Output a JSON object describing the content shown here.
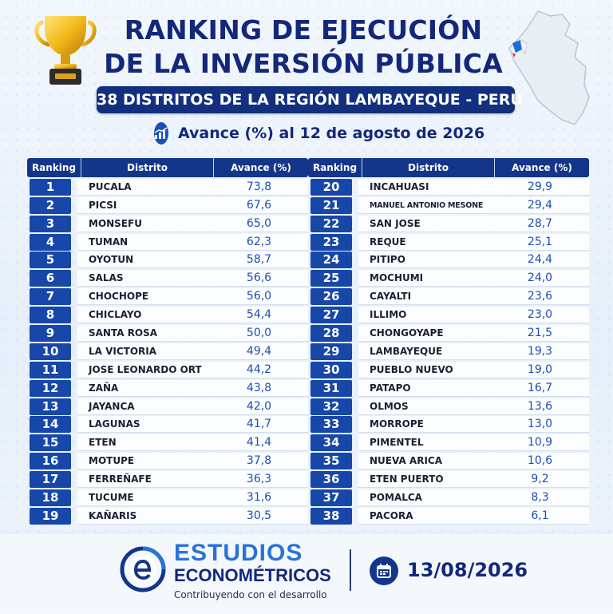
{
  "header": {
    "title_line1": "RANKING DE EJECUCIÓN",
    "title_line2": "DE LA INVERSIÓN PÚBLICA",
    "subtitle": "38 DISTRITOS DE LA REGIÓN LAMBAYEQUE - PERÚ",
    "avance_text": "Avance (%) al 12 de agosto de 2026"
  },
  "table": {
    "headers": [
      "Ranking",
      "Distrito",
      "Avance (%)"
    ],
    "left": [
      {
        "rank": "1",
        "district": "PUCALA",
        "value": "73,8"
      },
      {
        "rank": "2",
        "district": "PICSI",
        "value": "67,6"
      },
      {
        "rank": "3",
        "district": "MONSEFU",
        "value": "65,0"
      },
      {
        "rank": "4",
        "district": "TUMAN",
        "value": "62,3"
      },
      {
        "rank": "5",
        "district": "OYOTUN",
        "value": "58,7"
      },
      {
        "rank": "6",
        "district": "SALAS",
        "value": "56,6"
      },
      {
        "rank": "7",
        "district": "CHOCHOPE",
        "value": "56,0"
      },
      {
        "rank": "8",
        "district": "CHICLAYO",
        "value": "54,4"
      },
      {
        "rank": "9",
        "district": "SANTA ROSA",
        "value": "50,0"
      },
      {
        "rank": "10",
        "district": "LA VICTORIA",
        "value": "49,4"
      },
      {
        "rank": "11",
        "district": "JOSE LEONARDO ORTIZ",
        "value": "44,2"
      },
      {
        "rank": "12",
        "district": "ZAÑA",
        "value": "43,8"
      },
      {
        "rank": "13",
        "district": "JAYANCA",
        "value": "42,0"
      },
      {
        "rank": "14",
        "district": "LAGUNAS",
        "value": "41,7"
      },
      {
        "rank": "15",
        "district": "ETEN",
        "value": "41,4"
      },
      {
        "rank": "16",
        "district": "MOTUPE",
        "value": "37,8"
      },
      {
        "rank": "17",
        "district": "FERREÑAFE",
        "value": "36,3"
      },
      {
        "rank": "18",
        "district": "TUCUME",
        "value": "31,6"
      },
      {
        "rank": "19",
        "district": "KAÑARIS",
        "value": "30,5"
      }
    ],
    "right": [
      {
        "rank": "20",
        "district": "INCAHUASI",
        "value": "29,9"
      },
      {
        "rank": "21",
        "district": "MANUEL ANTONIO MESONES MURO",
        "value": "29,4"
      },
      {
        "rank": "22",
        "district": "SAN JOSE",
        "value": "28,7"
      },
      {
        "rank": "23",
        "district": "REQUE",
        "value": "25,1"
      },
      {
        "rank": "24",
        "district": "PITIPO",
        "value": "24,4"
      },
      {
        "rank": "25",
        "district": "MOCHUMI",
        "value": "24,0"
      },
      {
        "rank": "26",
        "district": "CAYALTI",
        "value": "23,6"
      },
      {
        "rank": "27",
        "district": "ILLIMO",
        "value": "23,0"
      },
      {
        "rank": "28",
        "district": "CHONGOYAPE",
        "value": "21,5"
      },
      {
        "rank": "29",
        "district": "LAMBAYEQUE",
        "value": "19,3"
      },
      {
        "rank": "30",
        "district": "PUEBLO NUEVO",
        "value": "19,0"
      },
      {
        "rank": "31",
        "district": "PATAPO",
        "value": "16,7"
      },
      {
        "rank": "32",
        "district": "OLMOS",
        "value": "13,6"
      },
      {
        "rank": "33",
        "district": "MORROPE",
        "value": "13,0"
      },
      {
        "rank": "34",
        "district": "PIMENTEL",
        "value": "10,9"
      },
      {
        "rank": "35",
        "district": "NUEVA ARICA",
        "value": "10,6"
      },
      {
        "rank": "36",
        "district": "ETEN PUERTO",
        "value": "9,2"
      },
      {
        "rank": "37",
        "district": "POMALCA",
        "value": "8,3"
      },
      {
        "rank": "38",
        "district": "PACORA",
        "value": "6,1"
      }
    ]
  },
  "footer": {
    "brand_line1": "ESTUDIOS",
    "brand_line2": "ECONOMÉTRICOS",
    "tagline": "Contribuyendo con el desarrollo",
    "date": "13/08/2026"
  },
  "icons": {
    "trophy": "trophy-icon",
    "map": "peru-map-icon",
    "chart": "bar-chart-icon",
    "logo": "estudios-econometricos-logo",
    "calendar": "calendar-icon"
  },
  "colors": {
    "navy": "#13358a",
    "blue": "#1747a8",
    "value_blue": "#1a4fb3",
    "brand_blue": "#2a73d6"
  }
}
